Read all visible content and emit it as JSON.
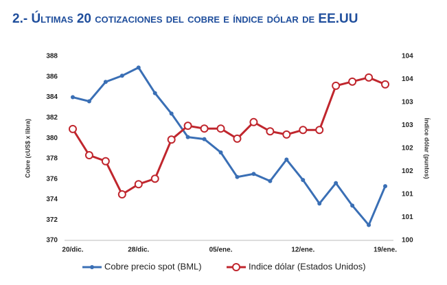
{
  "chart_data": {
    "type": "line",
    "title": "2.- Últimas 20 cotizaciones del cobre e índice dólar de EE.UU",
    "y_label": "Cobre (cUS$ x libra)",
    "y2_label": "Índice dólar (puntos)",
    "categories": [
      "20/dic.",
      null,
      null,
      null,
      "28/dic.",
      null,
      null,
      null,
      null,
      "05/ene.",
      null,
      null,
      null,
      null,
      "12/ene.",
      null,
      null,
      null,
      null,
      "19/ene."
    ],
    "ylim": [
      370,
      388
    ],
    "yticks": [
      370,
      372,
      374,
      376,
      378,
      380,
      382,
      384,
      386,
      388
    ],
    "y2lim": [
      100,
      104
    ],
    "y2ticks": [
      100,
      {
        "value": 100.5,
        "label": "101"
      },
      101,
      {
        "value": 101.5,
        "label": "102"
      },
      102,
      {
        "value": 102.5,
        "label": "103"
      },
      103,
      {
        "value": 103.5,
        "label": "104"
      },
      104
    ],
    "legend": "bottom",
    "series": [
      {
        "name": "Cobre precio spot (BML)",
        "color": "#3a6fb5",
        "values": [
          384.0,
          383.6,
          385.5,
          386.1,
          386.9,
          384.4,
          382.4,
          380.1,
          379.9,
          378.6,
          376.2,
          376.5,
          375.8,
          377.9,
          375.9,
          373.6,
          375.6,
          373.4,
          371.5,
          375.3
        ]
      },
      {
        "name": "Indice dólar (Estados Unidos)",
        "color": "#c0262d",
        "axis": "y2",
        "values": [
          102.42,
          101.85,
          101.72,
          101.0,
          101.22,
          101.34,
          102.19,
          102.49,
          102.43,
          102.43,
          102.21,
          102.57,
          102.37,
          102.3,
          102.4,
          102.4,
          103.36,
          103.45,
          103.54,
          103.39
        ]
      }
    ]
  }
}
